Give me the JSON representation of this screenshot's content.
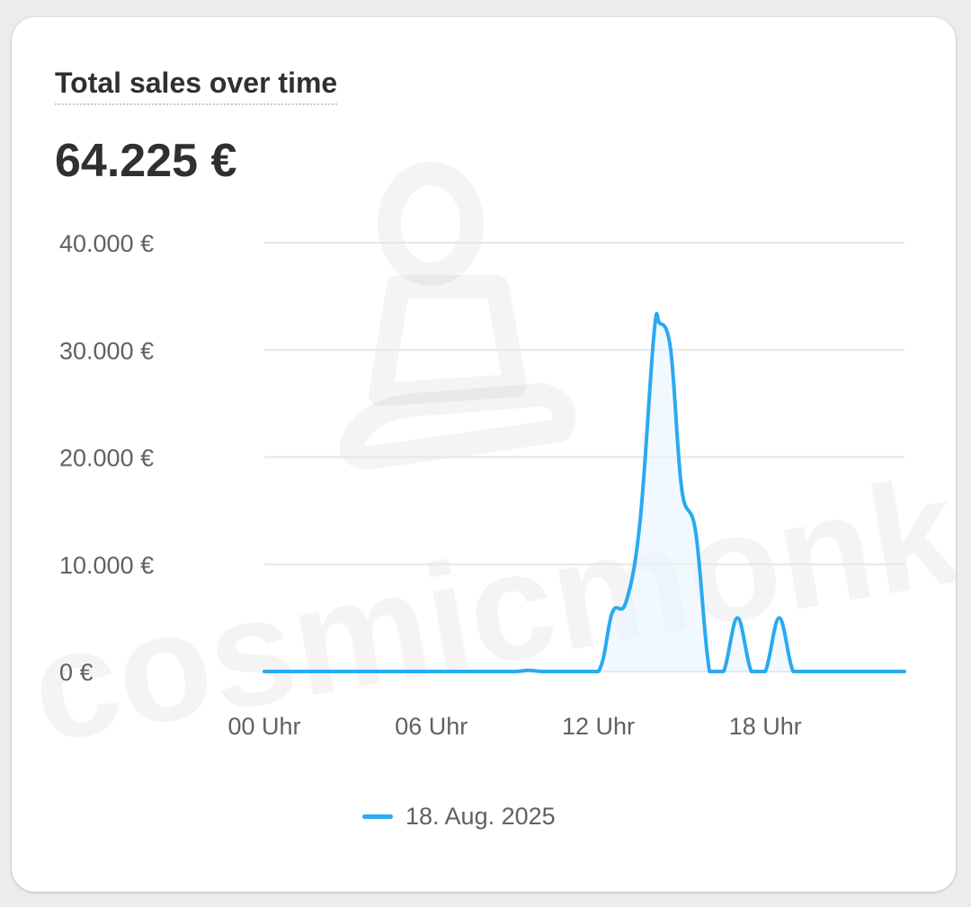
{
  "card": {
    "title": "Total sales over time",
    "value": "64.225 €"
  },
  "colors": {
    "series": "#2aaaf0",
    "grid": "#e6e6e6",
    "fill": "#eaf5fd"
  },
  "watermark": {
    "text": "cosmicmonks"
  },
  "chart_data": {
    "type": "line",
    "xlabel": "",
    "ylabel": "",
    "ylim": [
      0,
      40000
    ],
    "yticks": [
      {
        "value": 0,
        "label": "0 €"
      },
      {
        "value": 10000,
        "label": "10.000 €"
      },
      {
        "value": 20000,
        "label": "20.000 €"
      },
      {
        "value": 30000,
        "label": "30.000 €"
      },
      {
        "value": 40000,
        "label": "40.000 €"
      }
    ],
    "xlim": [
      0,
      23
    ],
    "xticks": [
      {
        "value": 0,
        "label": "00 Uhr"
      },
      {
        "value": 6,
        "label": "06 Uhr"
      },
      {
        "value": 12,
        "label": "12 Uhr"
      },
      {
        "value": 18,
        "label": "18 Uhr"
      }
    ],
    "grid": true,
    "legend_position": "bottom",
    "series": [
      {
        "name": "18. Aug. 2025",
        "x": [
          0,
          1,
          2,
          3,
          4,
          5,
          6,
          7,
          8,
          9,
          9.5,
          10,
          11,
          12,
          12.5,
          13,
          13.5,
          14,
          14.2,
          14.6,
          15,
          15.5,
          16,
          16.5,
          17,
          17.5,
          18,
          18.5,
          19,
          19.5,
          20,
          21,
          22,
          23
        ],
        "y": [
          0,
          0,
          0,
          0,
          0,
          0,
          0,
          0,
          0,
          0,
          100,
          0,
          0,
          0,
          5500,
          6500,
          14000,
          31500,
          32500,
          30000,
          17000,
          13000,
          0,
          0,
          5000,
          0,
          0,
          5000,
          0,
          0,
          0,
          0,
          0,
          0
        ]
      }
    ]
  }
}
